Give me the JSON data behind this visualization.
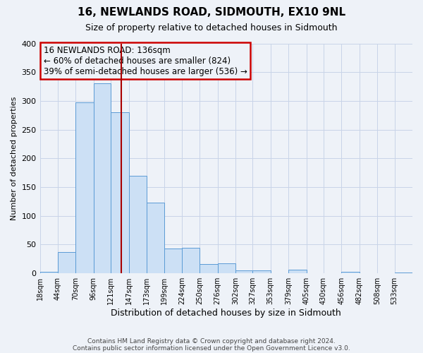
{
  "title": "16, NEWLANDS ROAD, SIDMOUTH, EX10 9NL",
  "subtitle": "Size of property relative to detached houses in Sidmouth",
  "xlabel": "Distribution of detached houses by size in Sidmouth",
  "ylabel": "Number of detached properties",
  "bin_labels": [
    "18sqm",
    "44sqm",
    "70sqm",
    "96sqm",
    "121sqm",
    "147sqm",
    "173sqm",
    "199sqm",
    "224sqm",
    "250sqm",
    "276sqm",
    "302sqm",
    "327sqm",
    "353sqm",
    "379sqm",
    "405sqm",
    "430sqm",
    "456sqm",
    "482sqm",
    "508sqm",
    "533sqm"
  ],
  "bin_edges": [
    18,
    44,
    70,
    96,
    121,
    147,
    173,
    199,
    224,
    250,
    276,
    302,
    327,
    353,
    379,
    405,
    430,
    456,
    482,
    508,
    533,
    559
  ],
  "counts": [
    3,
    37,
    297,
    330,
    280,
    170,
    123,
    43,
    45,
    16,
    17,
    5,
    5,
    0,
    7,
    0,
    0,
    3,
    0,
    0,
    2
  ],
  "vline_x": 136,
  "annotation_title": "16 NEWLANDS ROAD: 136sqm",
  "annotation_line1": "← 60% of detached houses are smaller (824)",
  "annotation_line2": "39% of semi-detached houses are larger (536) →",
  "bar_facecolor": "#cce0f5",
  "bar_edgecolor": "#5b9bd5",
  "vline_color": "#aa0000",
  "annotation_box_edgecolor": "#cc0000",
  "grid_color": "#c8d4e8",
  "background_color": "#eef2f8",
  "ylim": [
    0,
    400
  ],
  "yticks": [
    0,
    50,
    100,
    150,
    200,
    250,
    300,
    350,
    400
  ],
  "footer_line1": "Contains HM Land Registry data © Crown copyright and database right 2024.",
  "footer_line2": "Contains public sector information licensed under the Open Government Licence v3.0."
}
